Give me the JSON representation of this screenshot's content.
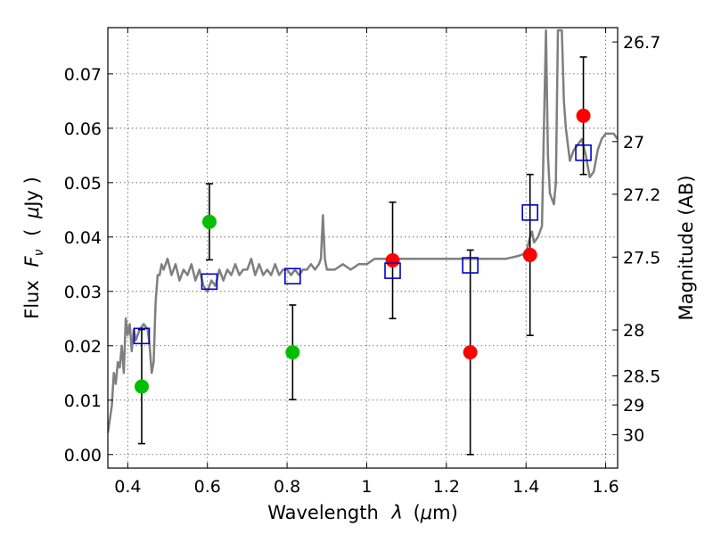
{
  "chart_data": {
    "type": "scatter",
    "title": "",
    "xlabel_text": "Wavelength",
    "xlabel_symbol": "λ",
    "xlabel_unit_open": "(",
    "xlabel_unit_mu": "μ",
    "xlabel_unit_rest": "m)",
    "ylabel_text": "Flux",
    "ylabel_symbol": "F",
    "ylabel_sub": "ν",
    "ylabel_unit_open": "(",
    "ylabel_unit_mu": "μ",
    "ylabel_unit_rest": "Jy )",
    "y2label": "Magnitude (AB)",
    "xlim": [
      0.35,
      1.63
    ],
    "ylim": [
      -0.0025,
      0.0785
    ],
    "grid": true,
    "x_ticks": [
      {
        "value": 0.4,
        "label": "0.4"
      },
      {
        "value": 0.6,
        "label": "0.6"
      },
      {
        "value": 0.8,
        "label": "0.8"
      },
      {
        "value": 1.0,
        "label": "1"
      },
      {
        "value": 1.2,
        "label": "1.2"
      },
      {
        "value": 1.4,
        "label": "1.4"
      },
      {
        "value": 1.6,
        "label": "1.6"
      }
    ],
    "y_ticks": [
      {
        "value": 0.0,
        "label": "0.00"
      },
      {
        "value": 0.01,
        "label": "0.01"
      },
      {
        "value": 0.02,
        "label": "0.02"
      },
      {
        "value": 0.03,
        "label": "0.03"
      },
      {
        "value": 0.04,
        "label": "0.04"
      },
      {
        "value": 0.05,
        "label": "0.05"
      },
      {
        "value": 0.06,
        "label": "0.06"
      },
      {
        "value": 0.07,
        "label": "0.07"
      }
    ],
    "mag_ticks": [
      {
        "value": 26.7,
        "label": "26.7"
      },
      {
        "value": 27.0,
        "label": "27"
      },
      {
        "value": 27.2,
        "label": "27.2"
      },
      {
        "value": 27.5,
        "label": "27.5"
      },
      {
        "value": 28.0,
        "label": "28"
      },
      {
        "value": 28.5,
        "label": "28.5"
      },
      {
        "value": 29.0,
        "label": "29"
      },
      {
        "value": 30.0,
        "label": "30"
      }
    ],
    "colors": {
      "model_spectrum": "#7f7f7f",
      "photometry_green": "#00bf00",
      "photometry_red": "#ff0000",
      "model_photometry": "#0000cc",
      "error_bar": "#000000"
    },
    "series": [
      {
        "marker": "circle",
        "color": "#00bf00",
        "points": [
          {
            "x": 0.435,
            "y": 0.0125,
            "err_low": 0.0105,
            "err_high": 0.0105
          },
          {
            "x": 0.605,
            "y": 0.0428,
            "err_low": 0.007,
            "err_high": 0.007
          },
          {
            "x": 0.814,
            "y": 0.0188,
            "err_low": 0.0087,
            "err_high": 0.0087
          }
        ]
      },
      {
        "marker": "circle",
        "color": "#ff0000",
        "points": [
          {
            "x": 1.065,
            "y": 0.0357,
            "err_low": 0.0107,
            "err_high": 0.0107
          },
          {
            "x": 1.26,
            "y": 0.0188,
            "err_low": 0.0188,
            "err_high": 0.0188
          },
          {
            "x": 1.41,
            "y": 0.0367,
            "err_low": 0.0148,
            "err_high": 0.0148
          },
          {
            "x": 1.544,
            "y": 0.0623,
            "err_low": 0.0108,
            "err_high": 0.0108
          }
        ]
      },
      {
        "marker": "square-open",
        "color": "#0000cc",
        "points": [
          {
            "x": 0.435,
            "y": 0.0218
          },
          {
            "x": 0.605,
            "y": 0.0318
          },
          {
            "x": 0.814,
            "y": 0.0328
          },
          {
            "x": 1.065,
            "y": 0.0338
          },
          {
            "x": 1.26,
            "y": 0.0348
          },
          {
            "x": 1.41,
            "y": 0.0445
          },
          {
            "x": 1.544,
            "y": 0.0555
          }
        ]
      },
      {
        "marker": "line",
        "color": "#7f7f7f",
        "points": [
          [
            0.35,
            0.004
          ],
          [
            0.36,
            0.009
          ],
          [
            0.365,
            0.015
          ],
          [
            0.37,
            0.013
          ],
          [
            0.375,
            0.017
          ],
          [
            0.38,
            0.016
          ],
          [
            0.385,
            0.02
          ],
          [
            0.39,
            0.015
          ],
          [
            0.395,
            0.025
          ],
          [
            0.4,
            0.022
          ],
          [
            0.405,
            0.024
          ],
          [
            0.41,
            0.019
          ],
          [
            0.415,
            0.023
          ],
          [
            0.42,
            0.021
          ],
          [
            0.43,
            0.023
          ],
          [
            0.44,
            0.024
          ],
          [
            0.45,
            0.023
          ],
          [
            0.455,
            0.02
          ],
          [
            0.46,
            0.015
          ],
          [
            0.465,
            0.017
          ],
          [
            0.47,
            0.028
          ],
          [
            0.475,
            0.033
          ],
          [
            0.48,
            0.033
          ],
          [
            0.485,
            0.035
          ],
          [
            0.49,
            0.034
          ],
          [
            0.5,
            0.036
          ],
          [
            0.51,
            0.033
          ],
          [
            0.52,
            0.035
          ],
          [
            0.53,
            0.032
          ],
          [
            0.54,
            0.034
          ],
          [
            0.55,
            0.033
          ],
          [
            0.56,
            0.035
          ],
          [
            0.57,
            0.032
          ],
          [
            0.58,
            0.034
          ],
          [
            0.59,
            0.031
          ],
          [
            0.6,
            0.03
          ],
          [
            0.61,
            0.032
          ],
          [
            0.62,
            0.031
          ],
          [
            0.63,
            0.034
          ],
          [
            0.64,
            0.032
          ],
          [
            0.65,
            0.034
          ],
          [
            0.66,
            0.033
          ],
          [
            0.67,
            0.035
          ],
          [
            0.68,
            0.033
          ],
          [
            0.69,
            0.034
          ],
          [
            0.7,
            0.034
          ],
          [
            0.71,
            0.036
          ],
          [
            0.72,
            0.033
          ],
          [
            0.73,
            0.035
          ],
          [
            0.74,
            0.033
          ],
          [
            0.75,
            0.034
          ],
          [
            0.76,
            0.033
          ],
          [
            0.77,
            0.035
          ],
          [
            0.78,
            0.033
          ],
          [
            0.79,
            0.034
          ],
          [
            0.8,
            0.034
          ],
          [
            0.81,
            0.033
          ],
          [
            0.82,
            0.034
          ],
          [
            0.83,
            0.033
          ],
          [
            0.84,
            0.034
          ],
          [
            0.85,
            0.034
          ],
          [
            0.86,
            0.035
          ],
          [
            0.87,
            0.034
          ],
          [
            0.88,
            0.035
          ],
          [
            0.885,
            0.036
          ],
          [
            0.89,
            0.044
          ],
          [
            0.895,
            0.036
          ],
          [
            0.9,
            0.034
          ],
          [
            0.92,
            0.034
          ],
          [
            0.94,
            0.035
          ],
          [
            0.96,
            0.034
          ],
          [
            0.98,
            0.035
          ],
          [
            1.0,
            0.035
          ],
          [
            1.02,
            0.036
          ],
          [
            1.05,
            0.036
          ],
          [
            1.08,
            0.036
          ],
          [
            1.1,
            0.036
          ],
          [
            1.15,
            0.036
          ],
          [
            1.2,
            0.036
          ],
          [
            1.25,
            0.036
          ],
          [
            1.3,
            0.036
          ],
          [
            1.35,
            0.036
          ],
          [
            1.38,
            0.0365
          ],
          [
            1.4,
            0.037
          ],
          [
            1.41,
            0.04
          ],
          [
            1.415,
            0.041
          ],
          [
            1.42,
            0.039
          ],
          [
            1.43,
            0.04
          ],
          [
            1.44,
            0.042
          ],
          [
            1.445,
            0.06
          ],
          [
            1.45,
            0.078
          ],
          [
            1.455,
            0.055
          ],
          [
            1.46,
            0.048
          ],
          [
            1.47,
            0.046
          ],
          [
            1.475,
            0.05
          ],
          [
            1.48,
            0.078
          ],
          [
            1.49,
            0.078
          ],
          [
            1.495,
            0.065
          ],
          [
            1.5,
            0.06
          ],
          [
            1.51,
            0.054
          ],
          [
            1.52,
            0.056
          ],
          [
            1.53,
            0.057
          ],
          [
            1.54,
            0.058
          ],
          [
            1.55,
            0.055
          ],
          [
            1.56,
            0.051
          ],
          [
            1.57,
            0.052
          ],
          [
            1.58,
            0.056
          ],
          [
            1.59,
            0.058
          ],
          [
            1.6,
            0.059
          ],
          [
            1.62,
            0.059
          ],
          [
            1.63,
            0.058
          ]
        ]
      }
    ]
  }
}
